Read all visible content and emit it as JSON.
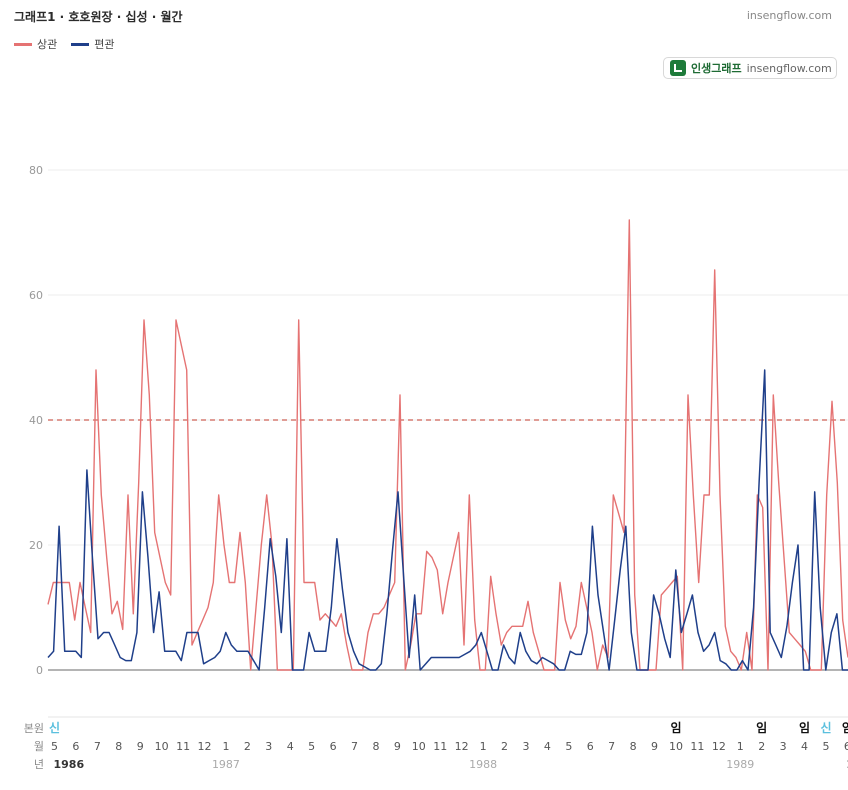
{
  "header": {
    "title": "그래프1 · 호호원장 · 십성 · 월간",
    "site": "insengflow.com"
  },
  "legend": [
    {
      "name": "상관",
      "color": "#e57373"
    },
    {
      "name": "편관",
      "color": "#1f3f8a"
    }
  ],
  "badge": {
    "name": "인생그래프",
    "url": "insengflow.com",
    "icon": "chart-logo-icon"
  },
  "chart_data": {
    "type": "line",
    "ylim": [
      0,
      80
    ],
    "yticks": [
      0,
      20,
      40,
      60,
      80
    ],
    "grid": true,
    "reference_line": {
      "value": 40,
      "style": "dashed",
      "color": "#c0392b"
    },
    "row_labels": {
      "bonwon": "본원",
      "month": "월",
      "year": "년"
    },
    "months": [
      5,
      6,
      7,
      8,
      9,
      10,
      11,
      12,
      1,
      2,
      3,
      4,
      5,
      6,
      7,
      8,
      9,
      10,
      11,
      12,
      1,
      2,
      3,
      4,
      5,
      6,
      7,
      8,
      9,
      10,
      11,
      12,
      1,
      2,
      3,
      4,
      5,
      6
    ],
    "years": [
      {
        "label": "1986",
        "index": 0,
        "bold": true
      },
      {
        "label": "1987",
        "index": 8,
        "bold": false
      },
      {
        "label": "1988",
        "index": 20,
        "bold": false
      },
      {
        "label": "1989",
        "index": 32,
        "bold": false
      },
      {
        "label": "1989",
        "index": 37,
        "bold": true
      }
    ],
    "bonwon_marks": [
      {
        "index": 0,
        "label": "신",
        "color": "#5bc0de"
      },
      {
        "index": 29,
        "label": "임",
        "color": "#111111"
      },
      {
        "index": 33,
        "label": "임",
        "color": "#111111"
      },
      {
        "index": 35,
        "label": "임",
        "color": "#111111"
      },
      {
        "index": 36,
        "label": "신",
        "color": "#5bc0de"
      },
      {
        "index": 37,
        "label": "임",
        "color": "#111111"
      }
    ],
    "series": [
      {
        "name": "상관",
        "color": "#e57373",
        "values": [
          10.5,
          14,
          14,
          14,
          14,
          8,
          14,
          10,
          6,
          48,
          28,
          18,
          9,
          11,
          6.5,
          28,
          9,
          30,
          56,
          44,
          22,
          18,
          14,
          12,
          56,
          52,
          48,
          4,
          6,
          8,
          10,
          14,
          28,
          20,
          14,
          14,
          22,
          14,
          0,
          10,
          20,
          28,
          20,
          0,
          0,
          0,
          0,
          56,
          14,
          14,
          14,
          8,
          9,
          8,
          7,
          9,
          4,
          0,
          0,
          0,
          6,
          9,
          9,
          10,
          12,
          14,
          44,
          0,
          4,
          9,
          9,
          19,
          18,
          16,
          9,
          14,
          18,
          22,
          4,
          28,
          8,
          0,
          0,
          15,
          9,
          4,
          6,
          7,
          7,
          7,
          11,
          6,
          3,
          0,
          0,
          0,
          14,
          8,
          5,
          7,
          14,
          10,
          6,
          0,
          4,
          2,
          28,
          25,
          22,
          72,
          12,
          0,
          0,
          0,
          0,
          12,
          13,
          14,
          15,
          0,
          44,
          28,
          14,
          28,
          28,
          64,
          28,
          7,
          3,
          2,
          0,
          6,
          0,
          28,
          26,
          0,
          44,
          30,
          18,
          6,
          5,
          4,
          3,
          0,
          0,
          0,
          28,
          43,
          30,
          8,
          2
        ]
      },
      {
        "name": "편관",
        "color": "#1f3f8a",
        "values": [
          2,
          3,
          23,
          3,
          3,
          3,
          2,
          32,
          18,
          5,
          6,
          6,
          4,
          2,
          1.5,
          1.5,
          6,
          28.5,
          18,
          6,
          12.5,
          3,
          3,
          3,
          1.5,
          6,
          6,
          6,
          1,
          1.5,
          2,
          3,
          6,
          4,
          3,
          3,
          3,
          1.5,
          0,
          10,
          21,
          15,
          6,
          21,
          0,
          0,
          0,
          6,
          3,
          3,
          3,
          10,
          21,
          13,
          6,
          3,
          1,
          0.5,
          0,
          0,
          1,
          9,
          19,
          28.5,
          15,
          2,
          12,
          0,
          1,
          2,
          2,
          2,
          2,
          2,
          2,
          2.5,
          3,
          4,
          6,
          3,
          0,
          0,
          4,
          2,
          1,
          6,
          3,
          1.5,
          1,
          2,
          1.5,
          1,
          0,
          0,
          3,
          2.5,
          2.5,
          6,
          23,
          12,
          6,
          0,
          8,
          16,
          23,
          6,
          0,
          0,
          0,
          12,
          9,
          5,
          2,
          16,
          6,
          9,
          12,
          6,
          3,
          4,
          6,
          1.5,
          1,
          0,
          0,
          1.5,
          0,
          10,
          30,
          48,
          6,
          4,
          2,
          7,
          14,
          20,
          0,
          0,
          28.5,
          10,
          0,
          6,
          9,
          0,
          0
        ]
      }
    ]
  }
}
